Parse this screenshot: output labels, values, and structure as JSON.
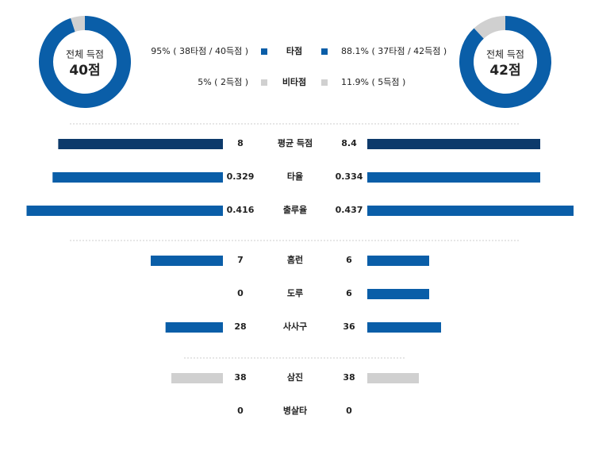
{
  "summary": {
    "categories": [
      "타점",
      "비타점"
    ],
    "colors": [
      "#0a5ea8",
      "#d0d0d0"
    ],
    "left": {
      "caption": "전체 득점",
      "total": "40점",
      "values": [
        95,
        5
      ],
      "value_labels": [
        "95% ( 38타점 / 40득점 )",
        "5% ( 2득점 )"
      ]
    },
    "right": {
      "caption": "전체 득점",
      "total": "42점",
      "values": [
        88.1,
        11.9
      ],
      "value_labels": [
        "88.1% ( 37타점 / 42득점 )",
        "11.9% ( 5득점 )"
      ]
    }
  },
  "comparison": {
    "rows": [
      {
        "label": "평균 득점",
        "left": 8,
        "right": 8.4,
        "color": "#0d3a6b"
      },
      {
        "label": "타율",
        "left": 0.329,
        "right": 0.334,
        "color": "#0a5ea8"
      },
      {
        "label": "출루율",
        "left": 0.416,
        "right": 0.437,
        "color": "#0a5ea8"
      },
      {
        "label": "홈런",
        "left": 7,
        "right": 6,
        "color": "#0a5ea8"
      },
      {
        "label": "도루",
        "left": 0,
        "right": 6,
        "color": "#0a5ea8"
      },
      {
        "label": "사사구",
        "left": 28,
        "right": 36,
        "color": "#0a5ea8"
      },
      {
        "label": "삼진",
        "left": 38,
        "right": 38,
        "color": "#d0d0d0"
      },
      {
        "label": "병살타",
        "left": 0,
        "right": 0,
        "color": "#d0d0d0"
      }
    ]
  }
}
